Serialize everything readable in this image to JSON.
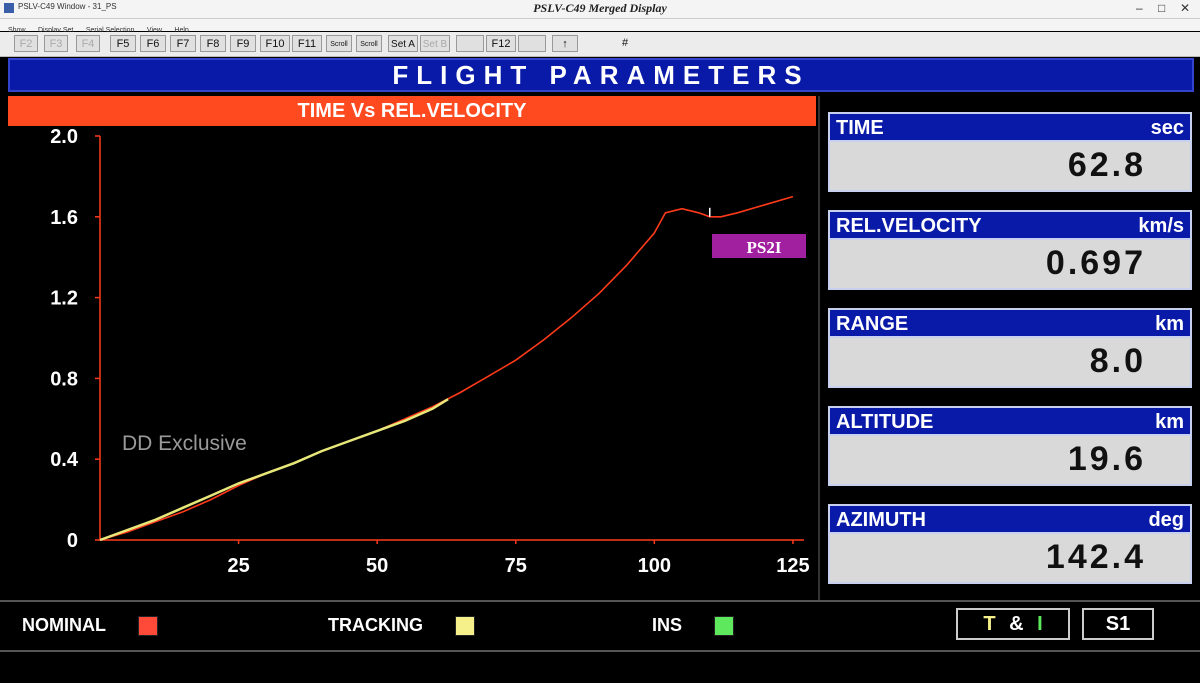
{
  "window": {
    "app_title": "PSLV-C49 Window - 31_PS",
    "center_title": "PSLV-C49  Merged  Display",
    "controls": [
      "–",
      "□",
      "✕"
    ]
  },
  "menu": [
    "Show",
    "Display Set",
    "Serial Selection",
    "View",
    "Help"
  ],
  "toolbar": {
    "f2": "F2",
    "f3": "F3",
    "f4": "F4",
    "f5": "F5",
    "f6": "F6",
    "f7": "F7",
    "f8": "F8",
    "f9": "F9",
    "f10": "F10",
    "f11": "F11",
    "scroll_up": "Scroll",
    "scroll_down": "Scroll",
    "set_a": "Set A",
    "set_b": "Set B",
    "f12": "F12",
    "up_arrow": "↑",
    "hash": "#"
  },
  "banner": {
    "title": "FLIGHT PARAMETERS"
  },
  "chart_data": {
    "type": "line",
    "title": "TIME Vs REL.VELOCITY",
    "xlabel": "",
    "ylabel": "",
    "xlim": [
      0,
      127
    ],
    "ylim": [
      0,
      2.0
    ],
    "xticks": [
      25,
      50,
      75,
      100,
      125
    ],
    "yticks": [
      0,
      0.4,
      0.8,
      1.2,
      1.6,
      2.0
    ],
    "ytick_labels": [
      "0",
      "0.4",
      "0.8",
      "1.2",
      "1.6",
      "2.0"
    ],
    "grid": false,
    "watermark": "DD Exclusive",
    "annotation": {
      "text": "PS2I",
      "color": "#a020a0"
    },
    "series": [
      {
        "name": "NOMINAL",
        "color": "#ff3a1a",
        "x": [
          0,
          5,
          10,
          15,
          20,
          25,
          30,
          35,
          40,
          45,
          50,
          55,
          60,
          65,
          70,
          75,
          80,
          85,
          90,
          95,
          100,
          102,
          105,
          108,
          110,
          112,
          115,
          120,
          125
        ],
        "y": [
          0,
          0.04,
          0.09,
          0.14,
          0.2,
          0.27,
          0.33,
          0.38,
          0.44,
          0.49,
          0.54,
          0.6,
          0.66,
          0.73,
          0.81,
          0.89,
          0.99,
          1.1,
          1.22,
          1.36,
          1.52,
          1.62,
          1.64,
          1.62,
          1.6,
          1.6,
          1.62,
          1.66,
          1.7
        ]
      },
      {
        "name": "TRACKING",
        "color": "#e8e87a",
        "x": [
          0,
          5,
          10,
          15,
          20,
          25,
          30,
          35,
          40,
          45,
          50,
          55,
          60,
          62.8
        ],
        "y": [
          0,
          0.05,
          0.1,
          0.16,
          0.22,
          0.28,
          0.33,
          0.38,
          0.44,
          0.49,
          0.54,
          0.59,
          0.65,
          0.697
        ]
      }
    ]
  },
  "params": [
    {
      "label": "TIME",
      "unit": "sec",
      "value": "62.8"
    },
    {
      "label": "REL.VELOCITY",
      "unit": "km/s",
      "value": "0.697"
    },
    {
      "label": "RANGE",
      "unit": "km",
      "value": "8.0"
    },
    {
      "label": "ALTITUDE",
      "unit": "km",
      "value": "19.6"
    },
    {
      "label": "AZIMUTH",
      "unit": "deg",
      "value": "142.4"
    }
  ],
  "legend": [
    {
      "label": "NOMINAL",
      "color": "#ff4a3a"
    },
    {
      "label": "TRACKING",
      "color": "#f5f08a"
    },
    {
      "label": "INS",
      "color": "#5ee85e"
    }
  ],
  "indicators": {
    "t_and_i": {
      "t": "T",
      "amp": "&",
      "i": "I",
      "t_color": "#f5f08a",
      "i_color": "#5ee85e"
    },
    "stage": "S1"
  }
}
